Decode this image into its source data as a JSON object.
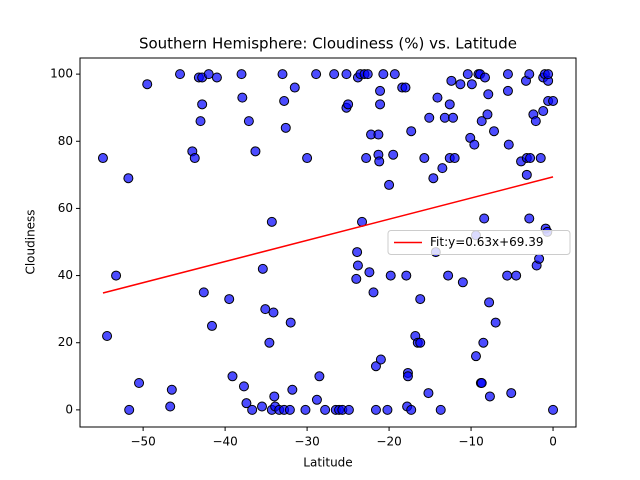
{
  "chart_data": {
    "type": "scatter",
    "title": "Southern Hemisphere: Cloudiness (%) vs. Latitude",
    "xlabel": "Latitude",
    "ylabel": "Cloudiness",
    "color": "#0000ff",
    "x": [
      -54.9,
      -54.4,
      -53.3,
      -51.8,
      -51.7,
      -50.5,
      -49.5,
      -46.7,
      -46.5,
      -45.5,
      -44,
      -43.7,
      -43.2,
      -43,
      -42.8,
      -42.8,
      -42.6,
      -42,
      -41.6,
      -41,
      -39.5,
      -39.1,
      -38,
      -37.9,
      -37.7,
      -37.4,
      -37.1,
      -36.7,
      -36.3,
      -35.5,
      -35.4,
      -35.1,
      -34.6,
      -34.3,
      -34.1,
      -34.3,
      -34,
      -33.9,
      -33.4,
      -33,
      -32.8,
      -32.6,
      -32.8,
      -32.1,
      -32,
      -31.8,
      -31.5,
      -30.2,
      -30,
      -28.9,
      -28.8,
      -28.5,
      -27.8,
      -26.7,
      -26.5,
      -26.1,
      -25.7,
      -25.2,
      -25.2,
      -25,
      -24.9,
      -24,
      -23.9,
      -23.8,
      -23.8,
      -23.5,
      -23.3,
      -23,
      -22.8,
      -22.6,
      -22.4,
      -22.2,
      -21.9,
      -21.6,
      -21.6,
      -21.3,
      -21.3,
      -21.2,
      -21.1,
      -21.1,
      -21,
      -20.7,
      -20.2,
      -20,
      -19.8,
      -19.5,
      -19.3,
      -18.4,
      -18,
      -17.9,
      -17.8,
      -17.7,
      -17.7,
      -17.3,
      -17.3,
      -16.8,
      -16.5,
      -16.2,
      -16.2,
      -15.7,
      -15.2,
      -15.1,
      -14.6,
      -14.3,
      -14.1,
      -13.7,
      -13.5,
      -13.2,
      -12.8,
      -12.6,
      -12.6,
      -12.4,
      -12.2,
      -12,
      -11.3,
      -11,
      -10.4,
      -10.1,
      -9.9,
      -9.6,
      -9.4,
      -9.4,
      -9.1,
      -8.9,
      -8.8,
      -8.5,
      -8.7,
      -8.7,
      -8.4,
      -8.3,
      -8,
      -7.9,
      -7.8,
      -7.7,
      -7.2,
      -7,
      -5.6,
      -5.5,
      -5.5,
      -5.4,
      -5.1,
      -4.5,
      -3.9,
      -3.3,
      -3.2,
      -3.2,
      -2.9,
      -2.9,
      -2.8,
      -2.4,
      -2.1,
      -2,
      -1.7,
      -1.5,
      -1.2,
      -1.2,
      -1,
      -0.9,
      -0.7,
      -0.6,
      -0.6,
      -0.6,
      0,
      0
    ],
    "y": [
      75,
      22,
      40,
      69,
      0,
      8,
      97,
      1,
      6,
      100,
      77,
      75,
      99,
      86,
      99,
      91,
      35,
      100,
      25,
      99,
      33,
      10,
      100,
      93,
      7,
      2,
      86,
      0,
      77,
      1,
      42,
      30,
      20,
      56,
      29,
      0,
      4,
      1,
      0,
      100,
      92,
      84,
      0,
      0,
      26,
      6,
      96,
      0,
      75,
      100,
      3,
      10,
      0,
      100,
      0,
      0,
      0,
      100,
      90,
      91,
      0,
      39,
      47,
      43,
      99,
      100,
      56,
      100,
      75,
      100,
      41,
      82,
      35,
      0,
      13,
      82,
      76,
      74,
      91,
      95,
      15,
      100,
      0,
      67,
      40,
      76,
      100,
      96,
      96,
      40,
      1,
      11,
      10,
      0,
      83,
      22,
      20,
      20,
      33,
      75,
      5,
      87,
      69,
      47,
      93,
      0,
      72,
      87,
      40,
      75,
      91,
      98,
      87,
      75,
      97,
      38,
      100,
      81,
      97,
      79,
      16,
      52,
      100,
      100,
      8,
      20,
      86,
      8,
      57,
      99,
      88,
      94,
      32,
      4,
      83,
      26,
      40,
      95,
      100,
      79,
      5,
      40,
      74,
      98,
      70,
      75,
      57,
      100,
      75,
      88,
      86,
      43,
      45,
      75,
      99,
      89,
      100,
      54,
      53,
      98,
      92,
      100,
      0,
      92
    ],
    "fit": {
      "name": "Fit:y=0.63x+69.39",
      "color": "#ff0000",
      "x": [
        -54.9,
        0
      ],
      "y": [
        34.8,
        69.39
      ]
    },
    "xlim": [
      -57.7,
      2.8
    ],
    "ylim": [
      -5.1,
      104.8
    ],
    "xticks": [
      {
        "value": -50,
        "label": "−50"
      },
      {
        "value": -40,
        "label": "−40"
      },
      {
        "value": -30,
        "label": "−30"
      },
      {
        "value": -20,
        "label": "−20"
      },
      {
        "value": -10,
        "label": "−10"
      },
      0
    ],
    "yticks": [
      0,
      20,
      40,
      60,
      80,
      100
    ],
    "legend": "center right"
  }
}
